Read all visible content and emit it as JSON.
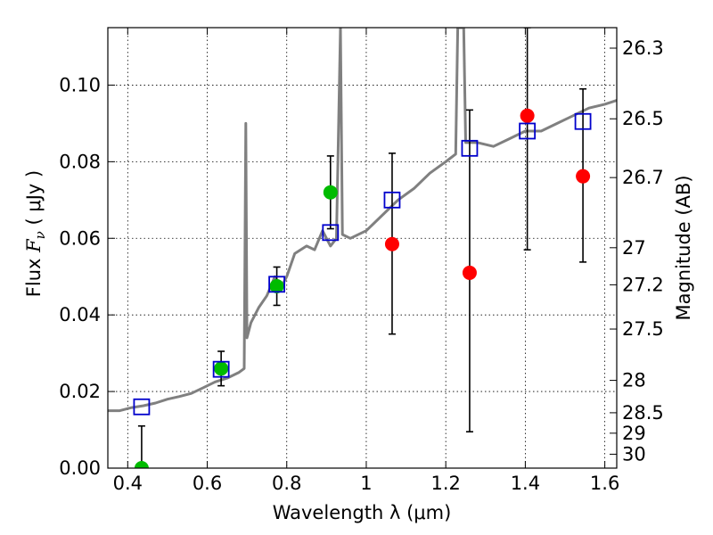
{
  "chart_data": {
    "type": "scatter",
    "xlabel": "Wavelength  λ (μm)",
    "ylabel_text": "Flux ",
    "ylabel_math": "F",
    "ylabel_sub": "ν",
    "ylabel_unit": " ( μJy )",
    "y2label": "Magnitude (AB)",
    "xlim": [
      0.35,
      1.63
    ],
    "ylim": [
      0.0,
      0.115
    ],
    "grid": true,
    "x_ticks": [
      {
        "value": 0.4,
        "label": "0.4"
      },
      {
        "value": 0.6,
        "label": "0.6"
      },
      {
        "value": 0.8,
        "label": "0.8"
      },
      {
        "value": 1.0,
        "label": "1"
      },
      {
        "value": 1.2,
        "label": "1.2"
      },
      {
        "value": 1.4,
        "label": "1.4"
      },
      {
        "value": 1.6,
        "label": "1.6"
      }
    ],
    "y_ticks": [
      {
        "value": 0.0,
        "label": "0.00"
      },
      {
        "value": 0.02,
        "label": "0.02"
      },
      {
        "value": 0.04,
        "label": "0.04"
      },
      {
        "value": 0.06,
        "label": "0.06"
      },
      {
        "value": 0.08,
        "label": "0.08"
      },
      {
        "value": 0.1,
        "label": "0.10"
      }
    ],
    "mag_ticks": [
      {
        "value": 26.3,
        "label": "26.3"
      },
      {
        "value": 26.5,
        "label": "26.5"
      },
      {
        "value": 26.7,
        "label": "26.7"
      },
      {
        "value": 27.0,
        "label": "27"
      },
      {
        "value": 27.2,
        "label": "27.2"
      },
      {
        "value": 27.5,
        "label": "27.5"
      },
      {
        "value": 28.0,
        "label": "28"
      },
      {
        "value": 28.5,
        "label": "28.5"
      },
      {
        "value": 29.0,
        "label": "29"
      },
      {
        "value": 30.0,
        "label": "30"
      }
    ],
    "colors": {
      "spectrum": "#808080",
      "optical": "#00bb00",
      "infrared": "#ff0000",
      "model": "#0000cc",
      "errorbar": "#000000"
    },
    "spectrum": [
      [
        0.35,
        0.015
      ],
      [
        0.38,
        0.015
      ],
      [
        0.41,
        0.0158
      ],
      [
        0.44,
        0.0163
      ],
      [
        0.47,
        0.017
      ],
      [
        0.5,
        0.018
      ],
      [
        0.53,
        0.0187
      ],
      [
        0.56,
        0.0195
      ],
      [
        0.59,
        0.021
      ],
      [
        0.62,
        0.0225
      ],
      [
        0.65,
        0.0235
      ],
      [
        0.68,
        0.025
      ],
      [
        0.693,
        0.026
      ],
      [
        0.697,
        0.09
      ],
      [
        0.7,
        0.034
      ],
      [
        0.71,
        0.038
      ],
      [
        0.73,
        0.042
      ],
      [
        0.75,
        0.045
      ],
      [
        0.77,
        0.05
      ],
      [
        0.785,
        0.047
      ],
      [
        0.8,
        0.05
      ],
      [
        0.82,
        0.056
      ],
      [
        0.85,
        0.058
      ],
      [
        0.87,
        0.057
      ],
      [
        0.89,
        0.062
      ],
      [
        0.91,
        0.058
      ],
      [
        0.925,
        0.06
      ],
      [
        0.935,
        0.115
      ],
      [
        0.94,
        0.061
      ],
      [
        0.96,
        0.06
      ],
      [
        1.0,
        0.062
      ],
      [
        1.04,
        0.066
      ],
      [
        1.08,
        0.07
      ],
      [
        1.12,
        0.073
      ],
      [
        1.16,
        0.077
      ],
      [
        1.2,
        0.08
      ],
      [
        1.225,
        0.082
      ],
      [
        1.23,
        0.115
      ],
      [
        1.245,
        0.115
      ],
      [
        1.25,
        0.085
      ],
      [
        1.28,
        0.085
      ],
      [
        1.32,
        0.084
      ],
      [
        1.36,
        0.086
      ],
      [
        1.4,
        0.088
      ],
      [
        1.44,
        0.088
      ],
      [
        1.48,
        0.09
      ],
      [
        1.52,
        0.092
      ],
      [
        1.56,
        0.094
      ],
      [
        1.6,
        0.095
      ],
      [
        1.63,
        0.096
      ]
    ],
    "series": [
      {
        "group": "optical",
        "points": [
          {
            "x": 0.435,
            "y": 0.0,
            "ylo": 0.0,
            "yhi": 0.011
          },
          {
            "x": 0.635,
            "y": 0.026,
            "ylo": 0.0215,
            "yhi": 0.0305
          },
          {
            "x": 0.775,
            "y": 0.0475,
            "ylo": 0.0425,
            "yhi": 0.0525
          },
          {
            "x": 0.91,
            "y": 0.072,
            "ylo": 0.0625,
            "yhi": 0.0815
          }
        ]
      },
      {
        "group": "infrared",
        "points": [
          {
            "x": 1.065,
            "y": 0.0585,
            "ylo": 0.035,
            "yhi": 0.0822
          },
          {
            "x": 1.26,
            "y": 0.051,
            "ylo": 0.0095,
            "yhi": 0.0935
          },
          {
            "x": 1.405,
            "y": 0.092,
            "ylo": 0.057,
            "yhi": 0.115
          },
          {
            "x": 1.545,
            "y": 0.0762,
            "ylo": 0.0538,
            "yhi": 0.099
          }
        ]
      }
    ],
    "model_points": [
      {
        "x": 0.435,
        "y": 0.016
      },
      {
        "x": 0.635,
        "y": 0.0258
      },
      {
        "x": 0.775,
        "y": 0.048
      },
      {
        "x": 0.91,
        "y": 0.0615
      },
      {
        "x": 1.065,
        "y": 0.07
      },
      {
        "x": 1.26,
        "y": 0.0835
      },
      {
        "x": 1.405,
        "y": 0.088
      },
      {
        "x": 1.545,
        "y": 0.0905
      }
    ]
  }
}
